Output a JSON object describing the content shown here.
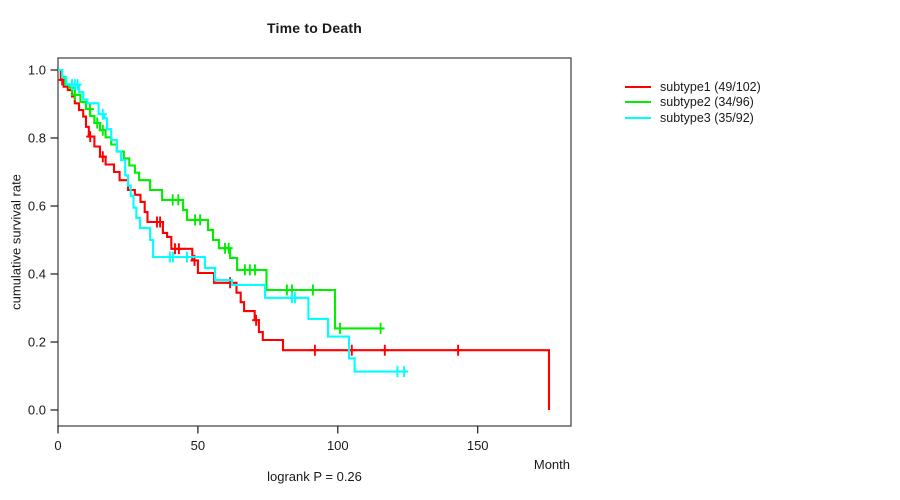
{
  "title": "Time to Death",
  "y_axis_label": "cumulative survival rate",
  "x_axis_label": "Month",
  "stat_annotation": "logrank P = 0.26",
  "legend": [
    {
      "label": "subtype1 (49/102)",
      "color": "#ff0000"
    },
    {
      "label": "subtype2 (34/96)",
      "color": "#00ee00"
    },
    {
      "label": "subtype3 (35/92)",
      "color": "#00ffff"
    }
  ],
  "chart_data": {
    "type": "line",
    "variant": "kaplan-meier-step",
    "title": "Time to Death",
    "xlabel": "Month",
    "ylabel": "cumulative survival rate",
    "xlim": [
      0,
      183
    ],
    "ylim": [
      -0.047,
      1.035
    ],
    "x_ticks": [
      0,
      50,
      100,
      150
    ],
    "y_ticks": [
      0.0,
      0.2,
      0.4,
      0.6,
      0.8,
      1.0
    ],
    "grid": false,
    "legend_position": "right-outside",
    "annotation": "logrank P = 0.26",
    "censor_marker": "plus",
    "series": [
      {
        "name": "subtype1 (49/102)",
        "color": "#ff0000",
        "events": 49,
        "n": 102,
        "steps": [
          [
            1,
            0.971
          ],
          [
            2,
            0.951
          ],
          [
            3.5,
            0.941
          ],
          [
            5,
            0.922
          ],
          [
            6,
            0.902
          ],
          [
            7.5,
            0.882
          ],
          [
            9,
            0.863
          ],
          [
            10,
            0.833
          ],
          [
            11,
            0.804
          ],
          [
            13,
            0.775
          ],
          [
            15,
            0.745
          ],
          [
            17,
            0.722
          ],
          [
            20,
            0.7
          ],
          [
            22,
            0.676
          ],
          [
            25,
            0.647
          ],
          [
            27.5,
            0.633
          ],
          [
            29.5,
            0.612
          ],
          [
            31,
            0.582
          ],
          [
            32,
            0.553
          ],
          [
            37.5,
            0.521
          ],
          [
            39,
            0.509
          ],
          [
            40.5,
            0.474
          ],
          [
            48,
            0.44
          ],
          [
            50,
            0.403
          ],
          [
            55.8,
            0.374
          ],
          [
            63.8,
            0.345
          ],
          [
            65.3,
            0.317
          ],
          [
            66.5,
            0.291
          ],
          [
            70.3,
            0.264
          ],
          [
            71.8,
            0.229
          ],
          [
            73.2,
            0.206
          ],
          [
            80.4,
            0.176
          ],
          [
            175.5,
            0.0
          ]
        ],
        "censor_times": [
          1.5,
          11.5,
          16,
          35.4,
          36.5,
          41.8,
          43.2,
          48.8,
          61.5,
          70.8,
          91.8,
          105,
          116.8,
          143
        ],
        "end_time": 175.5
      },
      {
        "name": "subtype2 (34/96)",
        "color": "#00ee00",
        "events": 34,
        "n": 96,
        "steps": [
          [
            1.5,
            0.979
          ],
          [
            2.5,
            0.958
          ],
          [
            4,
            0.948
          ],
          [
            6,
            0.927
          ],
          [
            8,
            0.906
          ],
          [
            10,
            0.885
          ],
          [
            11.5,
            0.865
          ],
          [
            13,
            0.844
          ],
          [
            15,
            0.823
          ],
          [
            17,
            0.802
          ],
          [
            19,
            0.781
          ],
          [
            21,
            0.76
          ],
          [
            23.5,
            0.74
          ],
          [
            25.5,
            0.719
          ],
          [
            27.5,
            0.698
          ],
          [
            29,
            0.676
          ],
          [
            32.9,
            0.647
          ],
          [
            37.2,
            0.618
          ],
          [
            44.7,
            0.588
          ],
          [
            46.1,
            0.559
          ],
          [
            53.6,
            0.529
          ],
          [
            55.4,
            0.5
          ],
          [
            57.5,
            0.476
          ],
          [
            61.5,
            0.447
          ],
          [
            64,
            0.412
          ],
          [
            74.5,
            0.353
          ],
          [
            99,
            0.24
          ]
        ],
        "censor_times": [
          5,
          6,
          11.4,
          14,
          16,
          41,
          43,
          49,
          50.8,
          59.7,
          61,
          66.8,
          68.6,
          70.4,
          81.8,
          83.6,
          91.1,
          100.8,
          115.3
        ],
        "end_time": 116.2
      },
      {
        "name": "subtype3 (35/92)",
        "color": "#00ffff",
        "events": 35,
        "n": 92,
        "steps": [
          [
            1.5,
            0.978
          ],
          [
            3,
            0.957
          ],
          [
            7.5,
            0.935
          ],
          [
            9,
            0.913
          ],
          [
            10.5,
            0.902
          ],
          [
            14.5,
            0.87
          ],
          [
            16.5,
            0.858
          ],
          [
            17.5,
            0.826
          ],
          [
            19,
            0.794
          ],
          [
            21,
            0.761
          ],
          [
            22.5,
            0.735
          ],
          [
            24,
            0.69
          ],
          [
            25,
            0.66
          ],
          [
            26,
            0.63
          ],
          [
            27,
            0.595
          ],
          [
            28,
            0.565
          ],
          [
            29.3,
            0.535
          ],
          [
            32.9,
            0.5
          ],
          [
            34,
            0.45
          ],
          [
            52.5,
            0.418
          ],
          [
            56.1,
            0.382
          ],
          [
            62.2,
            0.368
          ],
          [
            74,
            0.33
          ],
          [
            89.5,
            0.268
          ],
          [
            96.5,
            0.216
          ],
          [
            104,
            0.152
          ],
          [
            106,
            0.113
          ]
        ],
        "censor_times": [
          5,
          6,
          7,
          16,
          40,
          41.1,
          46.1,
          83.6,
          84.7,
          121.3,
          123.7
        ],
        "end_time": 125
      }
    ]
  }
}
